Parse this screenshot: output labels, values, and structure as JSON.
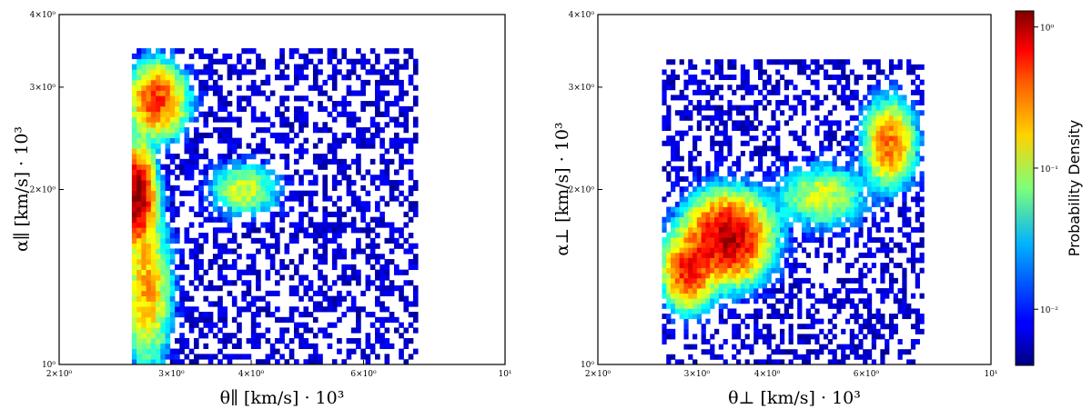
{
  "chart_data": [
    {
      "type": "heatmap",
      "title": "",
      "xlabel": "θ∥ [km/s] · 10³",
      "ylabel": "α∥ [km/s] · 10³",
      "xscale": "log",
      "yscale": "log",
      "xlim": [
        2,
        10
      ],
      "ylim": [
        1,
        4
      ],
      "x_ticks": [
        "2×10⁰",
        "3×10⁰",
        "4×10⁰",
        "6×10⁰",
        "10¹"
      ],
      "x_tick_values": [
        2,
        3,
        4,
        6,
        10
      ],
      "y_ticks": [
        "10⁰",
        "2×10⁰",
        "3×10⁰",
        "4×10⁰"
      ],
      "y_tick_values": [
        1,
        2,
        3,
        4
      ],
      "bin_extent": {
        "x": [
          2.6,
          7.3
        ],
        "y": [
          1.0,
          3.5
        ]
      },
      "clusters": [
        {
          "x": 2.65,
          "y": 1.95,
          "sx": 0.03,
          "sy": 0.09,
          "peak": 1.2
        },
        {
          "x": 2.85,
          "y": 2.85,
          "sx": 0.05,
          "sy": 0.07,
          "peak": 0.5
        },
        {
          "x": 2.75,
          "y": 1.35,
          "sx": 0.04,
          "sy": 0.15,
          "peak": 0.25
        },
        {
          "x": 3.9,
          "y": 2.0,
          "sx": 0.06,
          "sy": 0.05,
          "peak": 0.12
        }
      ]
    },
    {
      "type": "heatmap",
      "title": "",
      "xlabel": "θ⊥ [km/s] · 10³",
      "ylabel": "α⊥ [km/s] · 10³",
      "xscale": "log",
      "yscale": "log",
      "xlim": [
        2,
        10
      ],
      "ylim": [
        1,
        4
      ],
      "x_ticks": [
        "2×10⁰",
        "3×10⁰",
        "4×10⁰",
        "6×10⁰",
        "10¹"
      ],
      "x_tick_values": [
        2,
        3,
        4,
        6,
        10
      ],
      "y_ticks": [
        "10⁰",
        "2×10⁰",
        "3×10⁰",
        "4×10⁰"
      ],
      "y_tick_values": [
        1,
        2,
        3,
        4
      ],
      "bin_extent": {
        "x": [
          2.6,
          7.6
        ],
        "y": [
          1.0,
          3.35
        ]
      },
      "clusters": [
        {
          "x": 3.4,
          "y": 1.65,
          "sx": 0.08,
          "sy": 0.08,
          "peak": 1.0
        },
        {
          "x": 2.9,
          "y": 1.45,
          "sx": 0.05,
          "sy": 0.07,
          "peak": 0.6
        },
        {
          "x": 6.6,
          "y": 2.4,
          "sx": 0.05,
          "sy": 0.08,
          "peak": 0.35
        },
        {
          "x": 5.0,
          "y": 1.95,
          "sx": 0.09,
          "sy": 0.06,
          "peak": 0.12
        }
      ]
    }
  ],
  "colorbar": {
    "label": "Probability Density",
    "scale": "log",
    "range": [
      0.004,
      1.3
    ],
    "ticks": [
      "10⁻²",
      "10⁻¹",
      "10⁰"
    ],
    "tick_values": [
      0.01,
      0.1,
      1
    ],
    "colormap": "jet"
  }
}
